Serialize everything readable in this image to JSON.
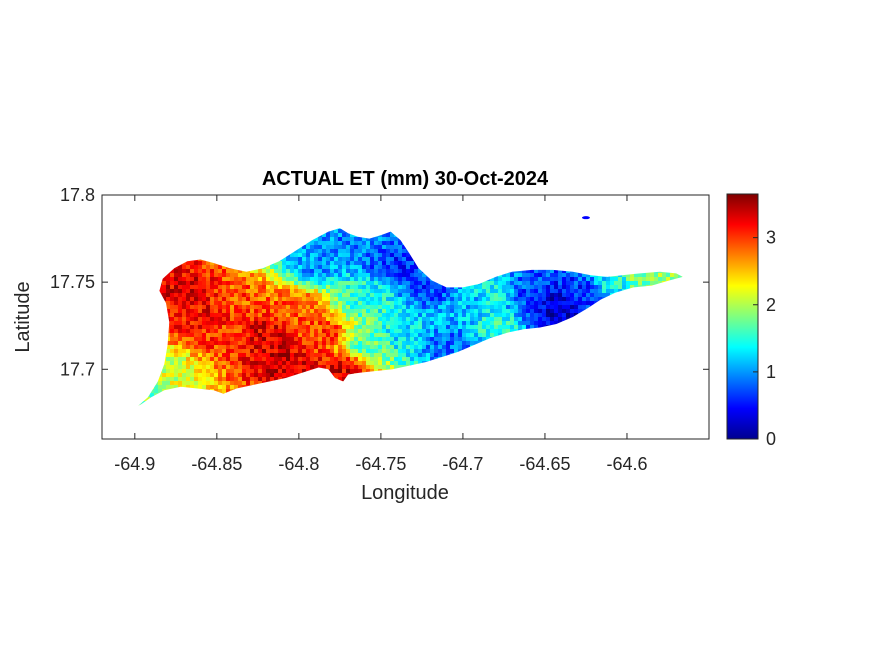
{
  "chart_data": {
    "type": "heatmap",
    "title": "ACTUAL ET (mm) 30-Oct-2024",
    "xlabel": "Longitude",
    "ylabel": "Latitude",
    "xlim": [
      -64.92,
      -64.55
    ],
    "ylim": [
      17.66,
      17.8
    ],
    "xticks": [
      -64.9,
      -64.85,
      -64.8,
      -64.75,
      -64.7,
      -64.65,
      -64.6
    ],
    "xtick_labels": [
      "-64.9",
      "-64.85",
      "-64.8",
      "-64.75",
      "-64.7",
      "-64.65",
      "-64.6"
    ],
    "yticks": [
      17.7,
      17.75,
      17.8
    ],
    "ytick_labels": [
      "17.7",
      "17.75",
      "17.8"
    ],
    "colorbar": {
      "colormap": "jet",
      "clim": [
        0,
        3.65
      ],
      "ticks": [
        0,
        1,
        2,
        3
      ],
      "tick_labels": [
        "0",
        "1",
        "2",
        "3"
      ]
    },
    "grid": false,
    "island_outline": [
      [
        -64.898,
        17.679
      ],
      [
        -64.892,
        17.684
      ],
      [
        -64.886,
        17.693
      ],
      [
        -64.882,
        17.703
      ],
      [
        -64.88,
        17.714
      ],
      [
        -64.879,
        17.727
      ],
      [
        -64.881,
        17.738
      ],
      [
        -64.885,
        17.745
      ],
      [
        -64.883,
        17.752
      ],
      [
        -64.876,
        17.758
      ],
      [
        -64.868,
        17.762
      ],
      [
        -64.86,
        17.763
      ],
      [
        -64.852,
        17.761
      ],
      [
        -64.842,
        17.758
      ],
      [
        -64.832,
        17.756
      ],
      [
        -64.822,
        17.758
      ],
      [
        -64.812,
        17.762
      ],
      [
        -64.802,
        17.768
      ],
      [
        -64.792,
        17.774
      ],
      [
        -64.782,
        17.779
      ],
      [
        -64.775,
        17.781
      ],
      [
        -64.77,
        17.778
      ],
      [
        -64.764,
        17.776
      ],
      [
        -64.757,
        17.775
      ],
      [
        -64.75,
        17.777
      ],
      [
        -64.744,
        17.779
      ],
      [
        -64.738,
        17.774
      ],
      [
        -64.733,
        17.767
      ],
      [
        -64.727,
        17.758
      ],
      [
        -64.719,
        17.751
      ],
      [
        -64.71,
        17.747
      ],
      [
        -64.7,
        17.747
      ],
      [
        -64.69,
        17.749
      ],
      [
        -64.68,
        17.753
      ],
      [
        -64.67,
        17.756
      ],
      [
        -64.658,
        17.757
      ],
      [
        -64.645,
        17.757
      ],
      [
        -64.633,
        17.756
      ],
      [
        -64.622,
        17.754
      ],
      [
        -64.612,
        17.753
      ],
      [
        -64.603,
        17.754
      ],
      [
        -64.592,
        17.755
      ],
      [
        -64.58,
        17.756
      ],
      [
        -64.57,
        17.755
      ],
      [
        -64.566,
        17.753
      ],
      [
        -64.574,
        17.751
      ],
      [
        -64.585,
        17.748
      ],
      [
        -64.596,
        17.747
      ],
      [
        -64.607,
        17.744
      ],
      [
        -64.616,
        17.74
      ],
      [
        -64.624,
        17.735
      ],
      [
        -64.633,
        17.73
      ],
      [
        -64.643,
        17.726
      ],
      [
        -64.653,
        17.724
      ],
      [
        -64.663,
        17.723
      ],
      [
        -64.673,
        17.721
      ],
      [
        -64.683,
        17.718
      ],
      [
        -64.693,
        17.714
      ],
      [
        -64.703,
        17.71
      ],
      [
        -64.713,
        17.707
      ],
      [
        -64.723,
        17.704
      ],
      [
        -64.733,
        17.702
      ],
      [
        -64.743,
        17.7
      ],
      [
        -64.753,
        17.699
      ],
      [
        -64.763,
        17.698
      ],
      [
        -64.77,
        17.697
      ],
      [
        -64.773,
        17.693
      ],
      [
        -64.778,
        17.695
      ],
      [
        -64.782,
        17.7
      ],
      [
        -64.788,
        17.701
      ],
      [
        -64.798,
        17.698
      ],
      [
        -64.808,
        17.695
      ],
      [
        -64.818,
        17.693
      ],
      [
        -64.828,
        17.691
      ],
      [
        -64.838,
        17.689
      ],
      [
        -64.846,
        17.686
      ],
      [
        -64.852,
        17.688
      ],
      [
        -64.862,
        17.689
      ],
      [
        -64.872,
        17.69
      ],
      [
        -64.882,
        17.688
      ],
      [
        -64.89,
        17.684
      ],
      [
        -64.896,
        17.68
      ]
    ],
    "islet": [
      -64.625,
      17.787
    ],
    "et_anchors": [
      {
        "lon": -64.895,
        "lat": 17.682,
        "et": 1.8
      },
      {
        "lon": -64.88,
        "lat": 17.7,
        "et": 2.1
      },
      {
        "lon": -64.87,
        "lat": 17.745,
        "et": 3.3
      },
      {
        "lon": -64.86,
        "lat": 17.73,
        "et": 3.2
      },
      {
        "lon": -64.845,
        "lat": 17.72,
        "et": 3.0
      },
      {
        "lon": -64.835,
        "lat": 17.74,
        "et": 2.9
      },
      {
        "lon": -64.82,
        "lat": 17.72,
        "et": 3.3
      },
      {
        "lon": -64.81,
        "lat": 17.705,
        "et": 3.4
      },
      {
        "lon": -64.8,
        "lat": 17.735,
        "et": 2.9
      },
      {
        "lon": -64.785,
        "lat": 17.72,
        "et": 3.0
      },
      {
        "lon": -64.775,
        "lat": 17.7,
        "et": 3.3
      },
      {
        "lon": -64.79,
        "lat": 17.76,
        "et": 1.0
      },
      {
        "lon": -64.77,
        "lat": 17.77,
        "et": 0.9
      },
      {
        "lon": -64.76,
        "lat": 17.74,
        "et": 1.5
      },
      {
        "lon": -64.76,
        "lat": 17.715,
        "et": 1.7
      },
      {
        "lon": -64.74,
        "lat": 17.76,
        "et": 0.6
      },
      {
        "lon": -64.735,
        "lat": 17.72,
        "et": 1.3
      },
      {
        "lon": -64.72,
        "lat": 17.745,
        "et": 0.7
      },
      {
        "lon": -64.71,
        "lat": 17.715,
        "et": 0.8
      },
      {
        "lon": -64.7,
        "lat": 17.735,
        "et": 1.1
      },
      {
        "lon": -64.68,
        "lat": 17.745,
        "et": 1.4
      },
      {
        "lon": -64.68,
        "lat": 17.725,
        "et": 1.5
      },
      {
        "lon": -64.66,
        "lat": 17.745,
        "et": 0.7
      },
      {
        "lon": -64.645,
        "lat": 17.74,
        "et": 0.3
      },
      {
        "lon": -64.64,
        "lat": 17.728,
        "et": 0.3
      },
      {
        "lon": -64.625,
        "lat": 17.745,
        "et": 0.6
      },
      {
        "lon": -64.61,
        "lat": 17.748,
        "et": 1.4
      },
      {
        "lon": -64.59,
        "lat": 17.752,
        "et": 1.8
      },
      {
        "lon": -64.572,
        "lat": 17.754,
        "et": 1.9
      }
    ]
  }
}
